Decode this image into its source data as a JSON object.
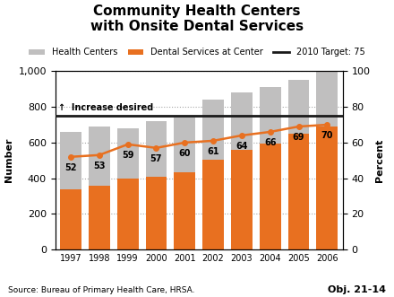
{
  "chart_data": {
    "type": "bar",
    "title": "Community Health Centers\nwith Onsite Dental Services",
    "categories": [
      "1997",
      "1998",
      "1999",
      "2000",
      "2001",
      "2002",
      "2003",
      "2004",
      "2005",
      "2006"
    ],
    "series": [
      {
        "name": "Health Centers",
        "color": "#c0bfbf",
        "values": [
          660,
          690,
          680,
          720,
          740,
          840,
          880,
          910,
          950,
          1000
        ]
      },
      {
        "name": "Dental Services at Center",
        "color": "#e87020",
        "values": [
          340,
          360,
          400,
          410,
          435,
          505,
          560,
          595,
          650,
          690
        ]
      },
      {
        "type": "line",
        "axis": "y2",
        "color": "#e87020",
        "marker": "o",
        "data_labels": true,
        "values": [
          52,
          53,
          59,
          57,
          60,
          61,
          64,
          66,
          69,
          70
        ]
      }
    ],
    "stacked": false,
    "ylim": [
      0,
      1000
    ],
    "yticks": [
      0,
      200,
      400,
      600,
      800,
      {
        "value": 1000,
        "label": "1,000"
      }
    ],
    "y2lim": [
      0,
      100
    ],
    "y2ticks": [
      0,
      20,
      40,
      60,
      80,
      100
    ],
    "ylabel": "Number",
    "y2label": "Percent",
    "grid": true,
    "legend": "upper center",
    "reference_line": {
      "axis": "y2",
      "value": 75,
      "label": "2010 Target: 75",
      "color": "#1a1a1a",
      "note": "↑  Increase desired"
    },
    "source": "Source: Bureau of Primary Health Care, HRSA.",
    "annotations": [
      "Obj. 21-14"
    ]
  }
}
